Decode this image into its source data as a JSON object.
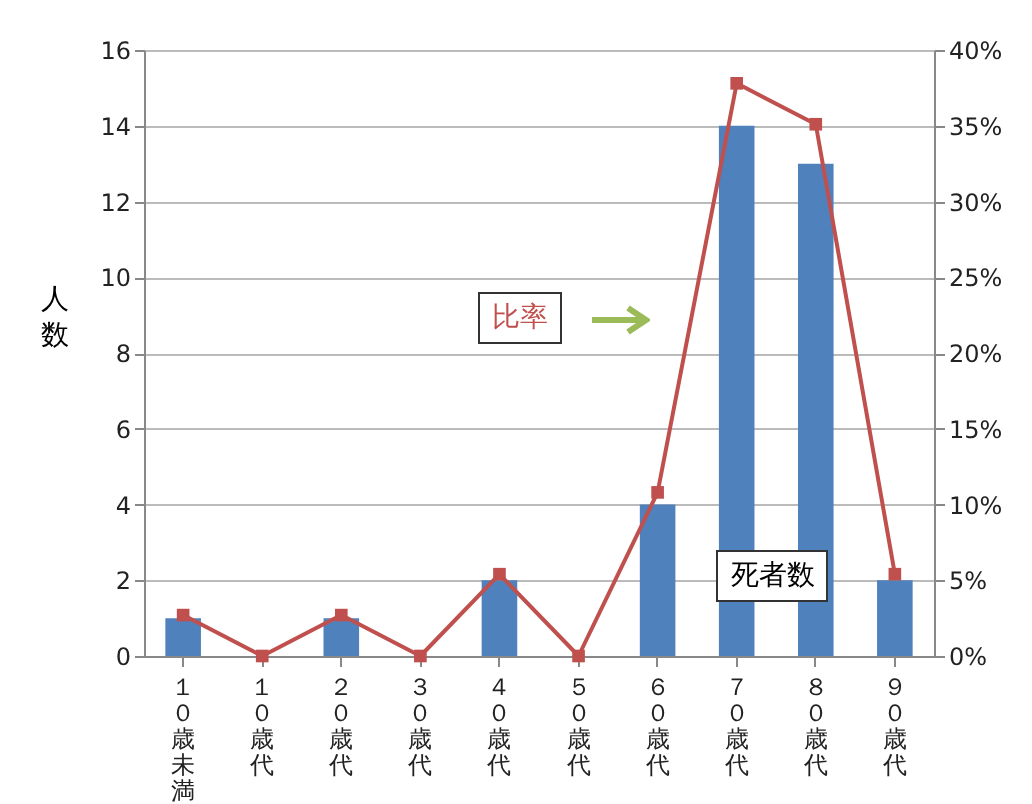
{
  "chart_data": {
    "type": "bar",
    "categories": [
      "１０歳未満",
      "１０歳代",
      "２０歳代",
      "３０歳代",
      "４０歳代",
      "５０歳代",
      "６０歳代",
      "７０歳代",
      "８０歳代",
      "９０歳代"
    ],
    "series": [
      {
        "name": "死者数",
        "color": "#4f81bd",
        "values": [
          1,
          0,
          1,
          0,
          2,
          0,
          4,
          14,
          13,
          2
        ]
      },
      {
        "name": "比率",
        "type": "line",
        "axis": "y2",
        "color": "#c0504d",
        "values": [
          2.7,
          0,
          2.7,
          0,
          5.4,
          0,
          10.8,
          37.8,
          35.1,
          5.4
        ]
      }
    ],
    "ylabel": "人数",
    "ylim": [
      0,
      16
    ],
    "yticks": [
      0,
      2,
      4,
      6,
      8,
      10,
      12,
      14,
      16
    ],
    "y2lim": [
      0,
      40
    ],
    "y2ticks": [
      {
        "value": 0,
        "label": "0%"
      },
      {
        "value": 5,
        "label": "5%"
      },
      {
        "value": 10,
        "label": "10%"
      },
      {
        "value": 15,
        "label": "15%"
      },
      {
        "value": 20,
        "label": "20%"
      },
      {
        "value": 25,
        "label": "25%"
      },
      {
        "value": 30,
        "label": "30%"
      },
      {
        "value": 35,
        "label": "35%"
      },
      {
        "value": 40,
        "label": "40%"
      }
    ],
    "grid": "y",
    "legend": false,
    "marker": "square",
    "line_style": "solid"
  }
}
